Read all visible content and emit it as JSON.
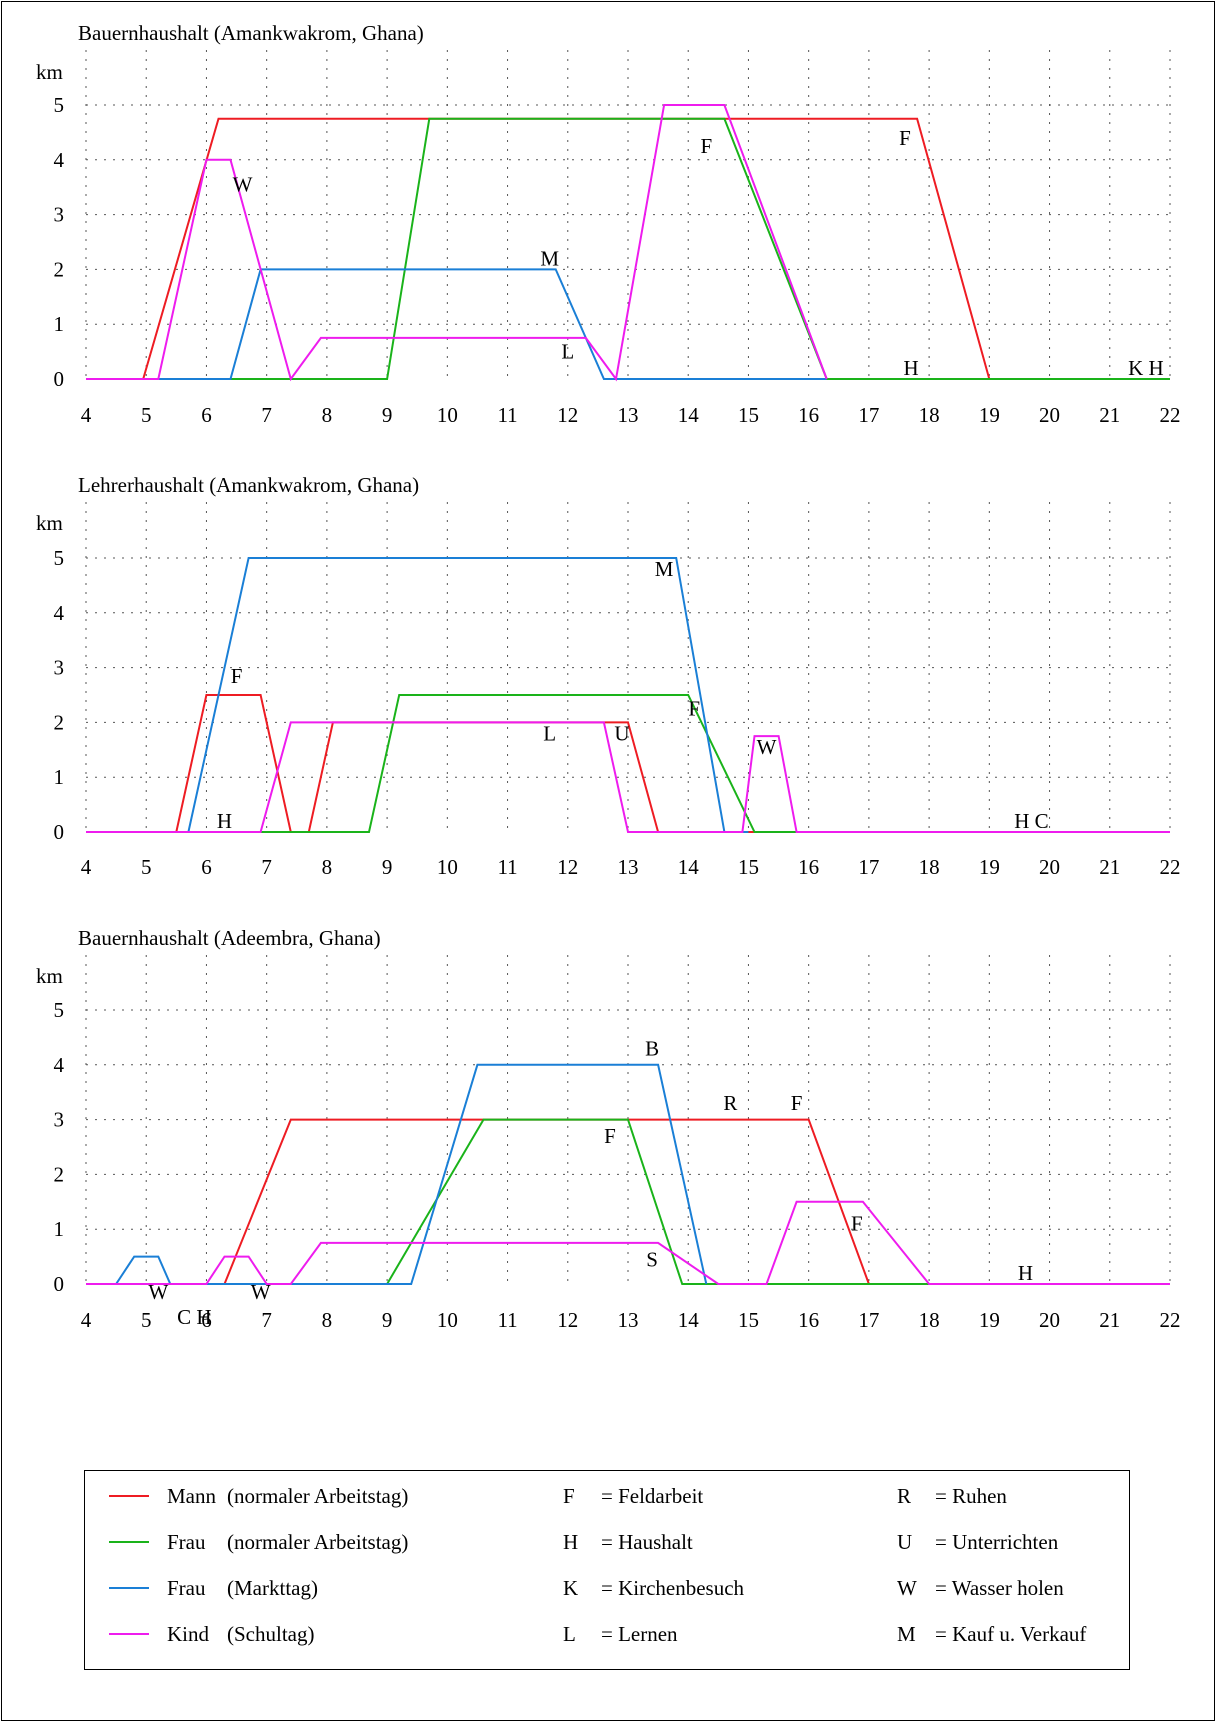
{
  "colors": {
    "mann": "#ee1c23",
    "frau": "#1ab31a",
    "frau_markt": "#1a7fd6",
    "kind": "#ee1cee",
    "grid": "#555555"
  },
  "chart_data": [
    {
      "type": "line",
      "title": "Bauernhaushalt (Amankwakrom, Ghana)",
      "ylabel": "km",
      "xlim": [
        4,
        22
      ],
      "ylim": [
        0,
        5.5
      ],
      "x_ticks": [
        "4",
        "5",
        "6",
        "7",
        "8",
        "9",
        "10",
        "11",
        "12",
        "13",
        "14",
        "15",
        "16",
        "17",
        "18",
        "19",
        "20",
        "21",
        "22"
      ],
      "y_ticks": [
        "0",
        "1",
        "2",
        "3",
        "4",
        "5"
      ],
      "grid": true,
      "series": [
        {
          "name": "Mann (normaler Arbeitstag)",
          "color_key": "mann",
          "points": [
            [
              4,
              0
            ],
            [
              4.95,
              0
            ],
            [
              6.2,
              4.75
            ],
            [
              17.8,
              4.75
            ],
            [
              19,
              0
            ],
            [
              22,
              0
            ]
          ]
        },
        {
          "name": "Frau (normaler Arbeitstag)",
          "color_key": "frau",
          "points": [
            [
              4,
              0
            ],
            [
              9,
              0
            ],
            [
              9.7,
              4.75
            ],
            [
              14.6,
              4.75
            ],
            [
              16.3,
              0
            ],
            [
              22,
              0
            ]
          ]
        },
        {
          "name": "Frau (Markttag)",
          "color_key": "frau_markt",
          "points": [
            [
              4,
              0
            ],
            [
              6.4,
              0
            ],
            [
              6.9,
              2
            ],
            [
              11.8,
              2
            ],
            [
              12.6,
              0
            ],
            [
              16.3,
              0
            ]
          ]
        },
        {
          "name": "Kind (Schultag)",
          "color_key": "kind",
          "points": [
            [
              4,
              0
            ],
            [
              5.2,
              0
            ],
            [
              6,
              4
            ],
            [
              6.4,
              4
            ],
            [
              7.4,
              0
            ],
            [
              7.9,
              0.75
            ],
            [
              12.3,
              0.75
            ],
            [
              12.8,
              0
            ],
            [
              13.6,
              5
            ],
            [
              14.6,
              5
            ],
            [
              16.3,
              0
            ]
          ]
        }
      ],
      "annotations": [
        {
          "text": "W",
          "x": 6.6,
          "y": 3.55
        },
        {
          "text": "M",
          "x": 11.7,
          "y": 2.2
        },
        {
          "text": "L",
          "x": 12,
          "y": 0.5
        },
        {
          "text": "F",
          "x": 14.3,
          "y": 4.25
        },
        {
          "text": "F",
          "x": 17.6,
          "y": 4.4
        },
        {
          "text": "H",
          "x": 17.7,
          "y": 0.2
        },
        {
          "text": "K H",
          "x": 21.6,
          "y": 0.2
        }
      ]
    },
    {
      "type": "line",
      "title": "Lehrerhaushalt (Amankwakrom, Ghana)",
      "ylabel": "km",
      "xlim": [
        4,
        22
      ],
      "ylim": [
        0,
        5.5
      ],
      "x_ticks": [
        "4",
        "5",
        "6",
        "7",
        "8",
        "9",
        "10",
        "11",
        "12",
        "13",
        "14",
        "15",
        "16",
        "17",
        "18",
        "19",
        "20",
        "21",
        "22"
      ],
      "y_ticks": [
        "0",
        "1",
        "2",
        "3",
        "4",
        "5"
      ],
      "grid": true,
      "series": [
        {
          "name": "Mann (normaler Arbeitstag)",
          "color_key": "mann",
          "points": [
            [
              4,
              0
            ],
            [
              5.5,
              0
            ],
            [
              6,
              2.5
            ],
            [
              6.9,
              2.5
            ],
            [
              7.4,
              0
            ],
            [
              7.7,
              0
            ],
            [
              8.1,
              2
            ],
            [
              13,
              2
            ],
            [
              13.5,
              0
            ],
            [
              15.1,
              0
            ]
          ]
        },
        {
          "name": "Frau (normaler Arbeitstag)",
          "color_key": "frau",
          "points": [
            [
              4,
              0
            ],
            [
              8.7,
              0
            ],
            [
              9.2,
              2.5
            ],
            [
              14,
              2.5
            ],
            [
              15.1,
              0
            ],
            [
              22,
              0
            ]
          ]
        },
        {
          "name": "Frau (Markttag)",
          "color_key": "frau_markt",
          "points": [
            [
              4,
              0
            ],
            [
              5.7,
              0
            ],
            [
              6.7,
              5
            ],
            [
              13.8,
              5
            ],
            [
              14.6,
              0
            ],
            [
              15,
              0
            ]
          ]
        },
        {
          "name": "Kind (Schultag)",
          "color_key": "kind",
          "points": [
            [
              4,
              0
            ],
            [
              6.9,
              0
            ],
            [
              7.4,
              2
            ],
            [
              12.6,
              2
            ],
            [
              13,
              0
            ],
            [
              14.9,
              0
            ],
            [
              15.1,
              1.75
            ],
            [
              15.5,
              1.75
            ],
            [
              15.8,
              0
            ],
            [
              22,
              0
            ]
          ]
        }
      ],
      "annotations": [
        {
          "text": "F",
          "x": 6.5,
          "y": 2.85
        },
        {
          "text": "H",
          "x": 6.3,
          "y": 0.2
        },
        {
          "text": "L",
          "x": 11.7,
          "y": 1.8
        },
        {
          "text": "U",
          "x": 12.9,
          "y": 1.8
        },
        {
          "text": "M",
          "x": 13.6,
          "y": 4.8
        },
        {
          "text": "F",
          "x": 14.1,
          "y": 2.25
        },
        {
          "text": "W",
          "x": 15.3,
          "y": 1.55
        },
        {
          "text": "H C",
          "x": 19.7,
          "y": 0.2
        }
      ]
    },
    {
      "type": "line",
      "title": "Bauernhaushalt (Adeembra, Ghana)",
      "ylabel": "km",
      "xlim": [
        4,
        22
      ],
      "ylim": [
        0,
        5.5
      ],
      "x_ticks": [
        "4",
        "5",
        "6",
        "7",
        "8",
        "9",
        "10",
        "11",
        "12",
        "13",
        "14",
        "15",
        "16",
        "17",
        "18",
        "19",
        "20",
        "21",
        "22"
      ],
      "y_ticks": [
        "0",
        "1",
        "2",
        "3",
        "4",
        "5"
      ],
      "grid": true,
      "series": [
        {
          "name": "Mann (normaler Arbeitstag)",
          "color_key": "mann",
          "points": [
            [
              4,
              0
            ],
            [
              6.3,
              0
            ],
            [
              7.4,
              3
            ],
            [
              16,
              3
            ],
            [
              17,
              0
            ]
          ]
        },
        {
          "name": "Frau (normaler Arbeitstag)",
          "color_key": "frau",
          "points": [
            [
              4,
              0
            ],
            [
              9,
              0
            ],
            [
              10.6,
              3
            ],
            [
              13,
              3
            ],
            [
              13.9,
              0
            ],
            [
              22,
              0
            ]
          ]
        },
        {
          "name": "Frau (Markttag)",
          "color_key": "frau_markt",
          "points": [
            [
              4,
              0
            ],
            [
              4.5,
              0
            ],
            [
              4.8,
              0.5
            ],
            [
              5.2,
              0.5
            ],
            [
              5.4,
              0
            ],
            [
              9.4,
              0
            ],
            [
              10.5,
              4
            ],
            [
              13.5,
              4
            ],
            [
              14.3,
              0
            ]
          ]
        },
        {
          "name": "Kind (Schultag)",
          "color_key": "kind",
          "points": [
            [
              4,
              0
            ],
            [
              6,
              0
            ],
            [
              6.3,
              0.5
            ],
            [
              6.7,
              0.5
            ],
            [
              7,
              0
            ],
            [
              7.4,
              0
            ],
            [
              7.9,
              0.75
            ],
            [
              13.5,
              0.75
            ],
            [
              14.5,
              0
            ],
            [
              15.3,
              0
            ],
            [
              15.8,
              1.5
            ],
            [
              16.9,
              1.5
            ],
            [
              18,
              0
            ],
            [
              22,
              0
            ]
          ]
        }
      ],
      "annotations": [
        {
          "text": "W",
          "x": 5.2,
          "y": -0.15
        },
        {
          "text": "C H",
          "x": 5.8,
          "y": -0.6
        },
        {
          "text": "W",
          "x": 6.9,
          "y": -0.15
        },
        {
          "text": "B",
          "x": 13.4,
          "y": 4.3
        },
        {
          "text": "R",
          "x": 14.7,
          "y": 3.3
        },
        {
          "text": "F",
          "x": 12.7,
          "y": 2.7
        },
        {
          "text": "F",
          "x": 15.8,
          "y": 3.3
        },
        {
          "text": "F",
          "x": 16.8,
          "y": 1.1
        },
        {
          "text": "S",
          "x": 13.4,
          "y": 0.45
        },
        {
          "text": "H",
          "x": 19.6,
          "y": 0.2
        }
      ]
    }
  ],
  "legend": {
    "series": [
      {
        "name": "Mann",
        "desc": "(normaler Arbeitstag)",
        "color_key": "mann"
      },
      {
        "name": "Frau",
        "desc": "(normaler Arbeitstag)",
        "color_key": "frau"
      },
      {
        "name": "Frau",
        "desc": "(Markttag)",
        "color_key": "frau_markt"
      },
      {
        "name": "Kind",
        "desc": "(Schultag)",
        "color_key": "kind"
      }
    ],
    "codes_left": [
      {
        "letter": "F",
        "text": "= Feldarbeit"
      },
      {
        "letter": "H",
        "text": "= Haushalt"
      },
      {
        "letter": "K",
        "text": "= Kirchenbesuch"
      },
      {
        "letter": "L",
        "text": "= Lernen"
      }
    ],
    "codes_right": [
      {
        "letter": "R",
        "text": "= Ruhen"
      },
      {
        "letter": "U",
        "text": "= Unterrichten"
      },
      {
        "letter": "W",
        "text": "= Wasser holen"
      },
      {
        "letter": "M",
        "text": "= Kauf u. Verkauf"
      }
    ]
  }
}
